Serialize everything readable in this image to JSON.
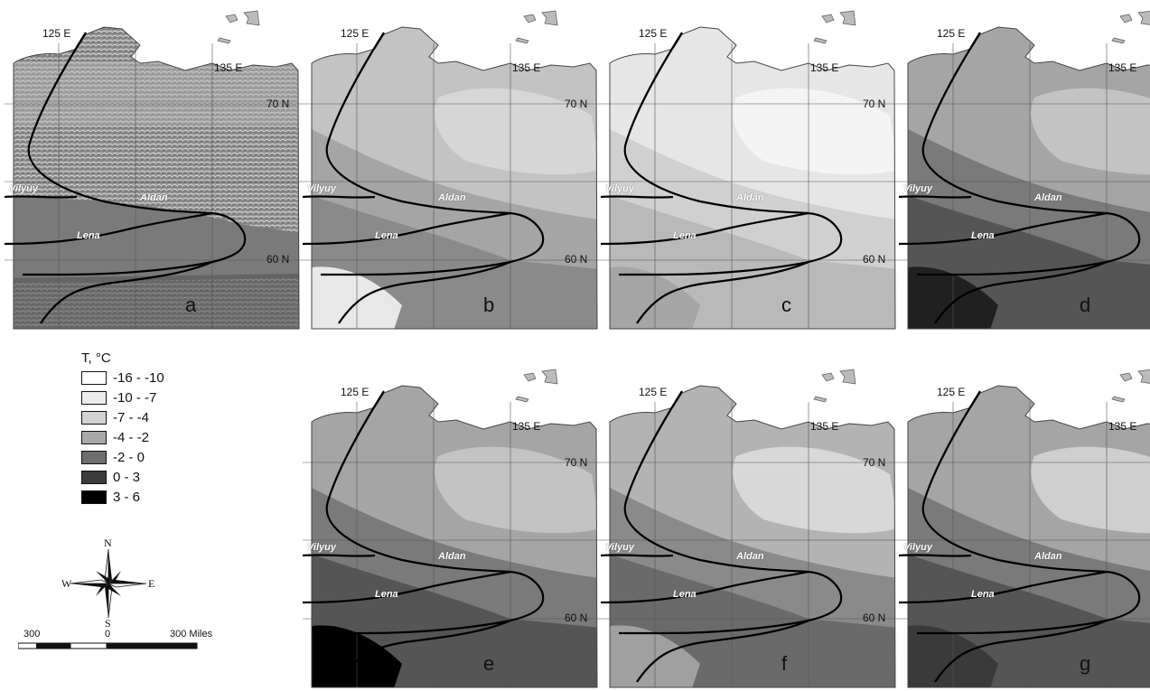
{
  "panels": [
    {
      "letter": "a",
      "style": "relief"
    },
    {
      "letter": "b",
      "fills": [
        "#c3c3c3",
        "#a5a5a5",
        "#8a8a8a",
        "#d6d6d6",
        "#e8e8e8"
      ]
    },
    {
      "letter": "c",
      "fills": [
        "#e6e6e6",
        "#d0d0d0",
        "#b9b9b9",
        "#f4f4f4",
        "#a5a5a5"
      ]
    },
    {
      "letter": "d",
      "fills": [
        "#a5a5a5",
        "#7a7a7a",
        "#555555",
        "#c3c3c3",
        "#202020"
      ]
    },
    {
      "letter": "e",
      "fills": [
        "#a5a5a5",
        "#7a7a7a",
        "#555555",
        "#c3c3c3",
        "#000000"
      ]
    },
    {
      "letter": "f",
      "fills": [
        "#b3b3b3",
        "#8a8a8a",
        "#6a6a6a",
        "#d8d8d8",
        "#a0a0a0"
      ]
    },
    {
      "letter": "g",
      "fills": [
        "#a5a5a5",
        "#7a7a7a",
        "#555555",
        "#cfcfcf",
        "#3a3a3a"
      ]
    }
  ],
  "grid_labels": {
    "lon1": "125 E",
    "lon2": "135 E",
    "lat1": "70 N",
    "lat2": "60 N"
  },
  "rivers": {
    "vilyuy": "Vilyuy",
    "aldan": "Aldan",
    "lena": "Lena"
  },
  "legend": {
    "title": "T, °C",
    "items": [
      {
        "label": "-16 - -10",
        "color": "#ffffff"
      },
      {
        "label": "-10 - -7",
        "color": "#ececec"
      },
      {
        "label": "-7 - -4",
        "color": "#d2d2d2"
      },
      {
        "label": "-4 - -2",
        "color": "#a8a8a8"
      },
      {
        "label": "-2 - 0",
        "color": "#6e6e6e"
      },
      {
        "label": "0 - 3",
        "color": "#3c3c3c"
      },
      {
        "label": "3 - 6",
        "color": "#000000"
      }
    ]
  },
  "compass": {
    "n": "N",
    "s": "S",
    "e": "E",
    "w": "W"
  },
  "scale": {
    "left": "300",
    "mid": "0",
    "right": "300 Miles"
  }
}
